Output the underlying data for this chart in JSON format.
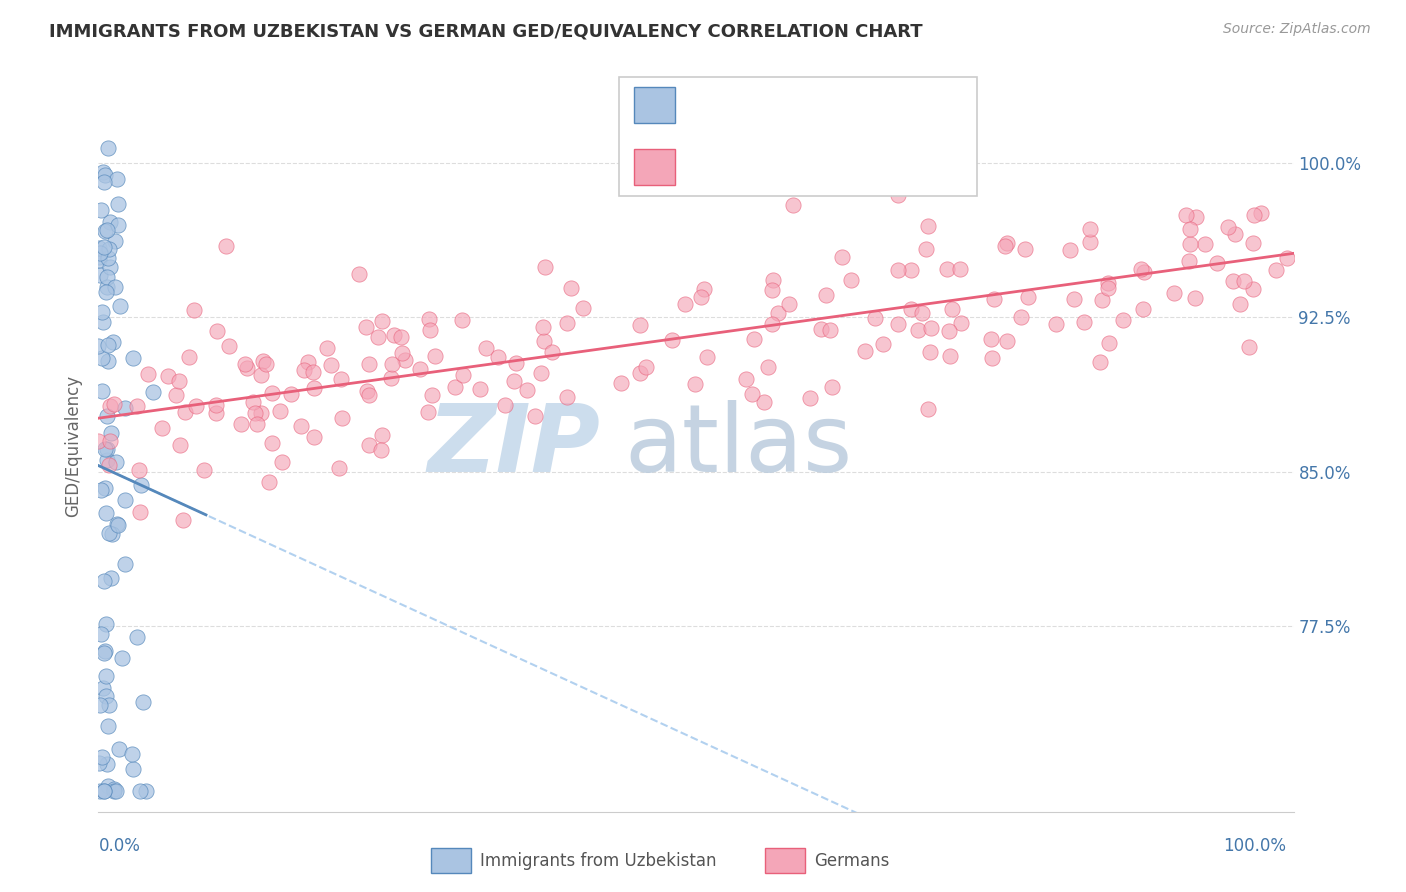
{
  "title": "IMMIGRANTS FROM UZBEKISTAN VS GERMAN GED/EQUIVALENCY CORRELATION CHART",
  "source": "Source: ZipAtlas.com",
  "ylabel": "GED/Equivalency",
  "ytick_vals": [
    0.775,
    0.85,
    0.925,
    1.0
  ],
  "ytick_labels": [
    "77.5%",
    "85.0%",
    "92.5%",
    "100.0%"
  ],
  "xlim": [
    0.0,
    1.0
  ],
  "ylim": [
    0.685,
    1.04
  ],
  "scatter_blue_color": "#aac4e2",
  "scatter_pink_color": "#f4a6b8",
  "line_blue_color": "#5588bb",
  "line_pink_color": "#e8607a",
  "dashed_blue_color": "#aaccee",
  "watermark_zip_color": "#ccdded",
  "watermark_atlas_color": "#bbccdd",
  "legend_border_color": "#cccccc",
  "tick_color": "#4477aa",
  "ylabel_color": "#666666",
  "title_color": "#333333",
  "source_color": "#999999",
  "grid_color": "#dddddd",
  "legend_text_color": "#333333",
  "legend_value_color": "#cc2222",
  "bottom_legend_text_color": "#555555"
}
